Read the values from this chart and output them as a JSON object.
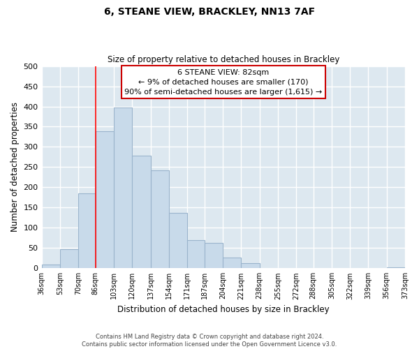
{
  "title": "6, STEANE VIEW, BRACKLEY, NN13 7AF",
  "subtitle": "Size of property relative to detached houses in Brackley",
  "xlabel": "Distribution of detached houses by size in Brackley",
  "ylabel": "Number of detached properties",
  "bar_color": "#c8daea",
  "bar_edge_color": "#9ab4cc",
  "plot_bg_color": "#dde8f0",
  "fig_bg_color": "#ffffff",
  "grid_color": "#ffffff",
  "bin_edges": [
    36,
    53,
    70,
    86,
    103,
    120,
    137,
    154,
    171,
    187,
    204,
    221,
    238,
    255,
    272,
    288,
    305,
    322,
    339,
    356,
    373
  ],
  "bin_labels": [
    "36sqm",
    "53sqm",
    "70sqm",
    "86sqm",
    "103sqm",
    "120sqm",
    "137sqm",
    "154sqm",
    "171sqm",
    "187sqm",
    "204sqm",
    "221sqm",
    "238sqm",
    "255sqm",
    "272sqm",
    "288sqm",
    "305sqm",
    "322sqm",
    "339sqm",
    "356sqm",
    "373sqm"
  ],
  "values": [
    10,
    47,
    185,
    338,
    398,
    278,
    242,
    137,
    70,
    62,
    26,
    12,
    0,
    0,
    0,
    0,
    0,
    0,
    0,
    3
  ],
  "red_line_x": 86,
  "ylim": [
    0,
    500
  ],
  "yticks": [
    0,
    50,
    100,
    150,
    200,
    250,
    300,
    350,
    400,
    450,
    500
  ],
  "annotation_title": "6 STEANE VIEW: 82sqm",
  "annotation_line1": "← 9% of detached houses are smaller (170)",
  "annotation_line2": "90% of semi-detached houses are larger (1,615) →",
  "annotation_box_color": "#ffffff",
  "annotation_box_edge": "#cc0000",
  "footnote1": "Contains HM Land Registry data © Crown copyright and database right 2024.",
  "footnote2": "Contains public sector information licensed under the Open Government Licence v3.0."
}
